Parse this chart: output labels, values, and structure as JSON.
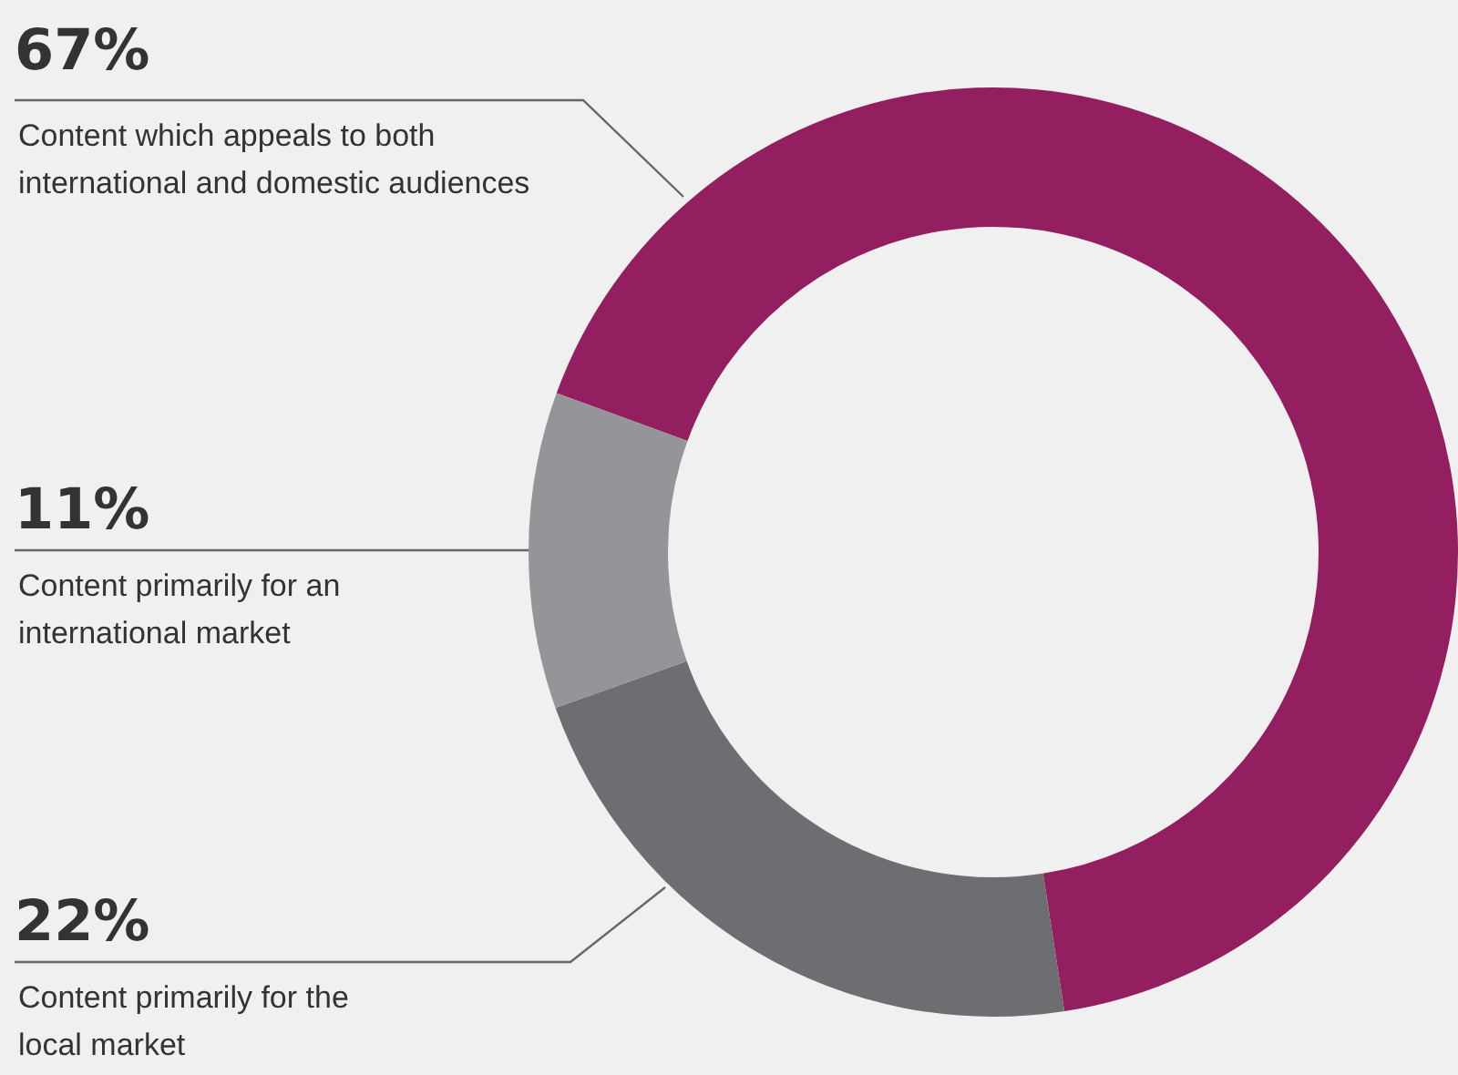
{
  "chart_data": {
    "type": "donut",
    "categories": [
      "Content which appeals to both international and domestic audiences",
      "Content primarily for the local market",
      "Content primarily for an international market"
    ],
    "values": [
      67,
      22,
      11
    ],
    "value_labels": [
      "67%",
      "22%",
      "11%"
    ],
    "colors": [
      "#931f61",
      "#6d6e72",
      "#939598"
    ],
    "legend": false
  }
}
